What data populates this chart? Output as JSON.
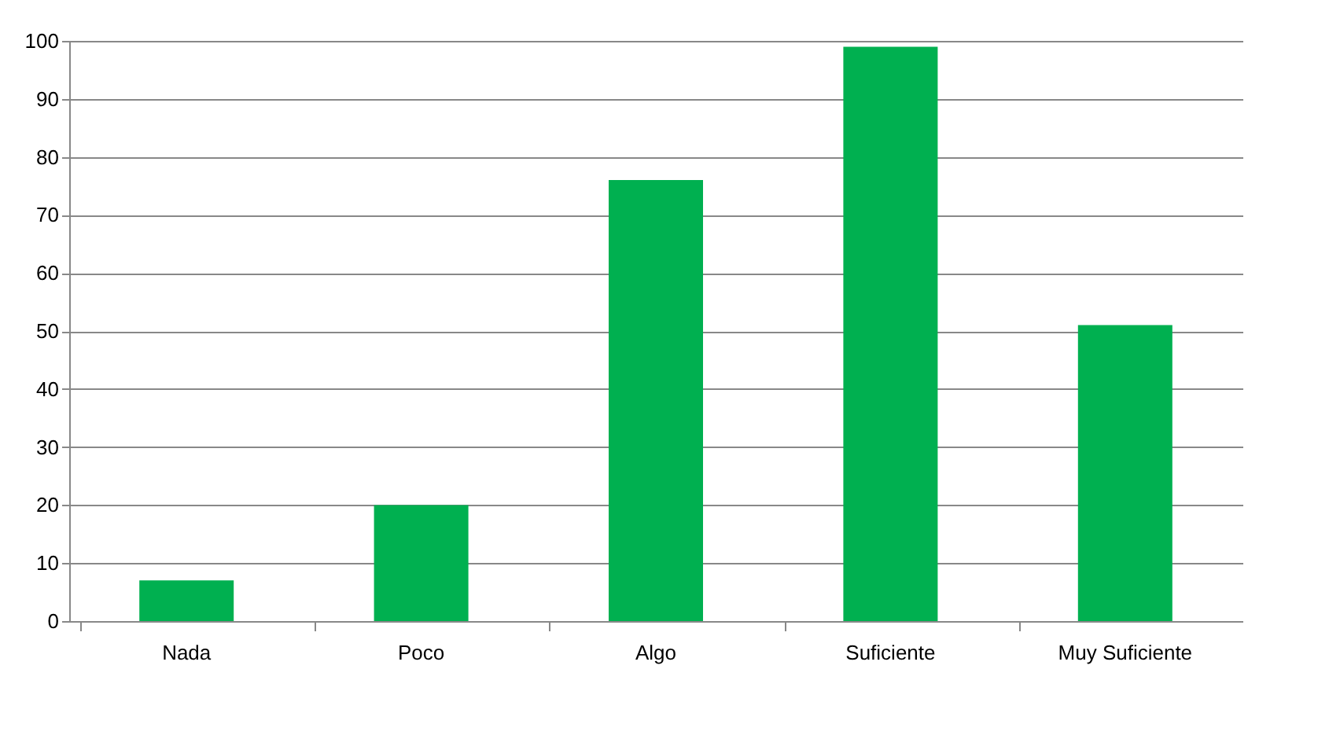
{
  "chart_data": {
    "type": "bar",
    "categories": [
      "Nada",
      "Poco",
      "Algo",
      "Suficiente",
      "Muy Suficiente"
    ],
    "values": [
      7,
      20,
      76,
      99,
      51
    ],
    "color": "#00b050",
    "ylim": [
      0,
      100
    ],
    "yticks": [
      0,
      10,
      20,
      30,
      40,
      50,
      60,
      70,
      80,
      90,
      100
    ],
    "grid": "y"
  }
}
